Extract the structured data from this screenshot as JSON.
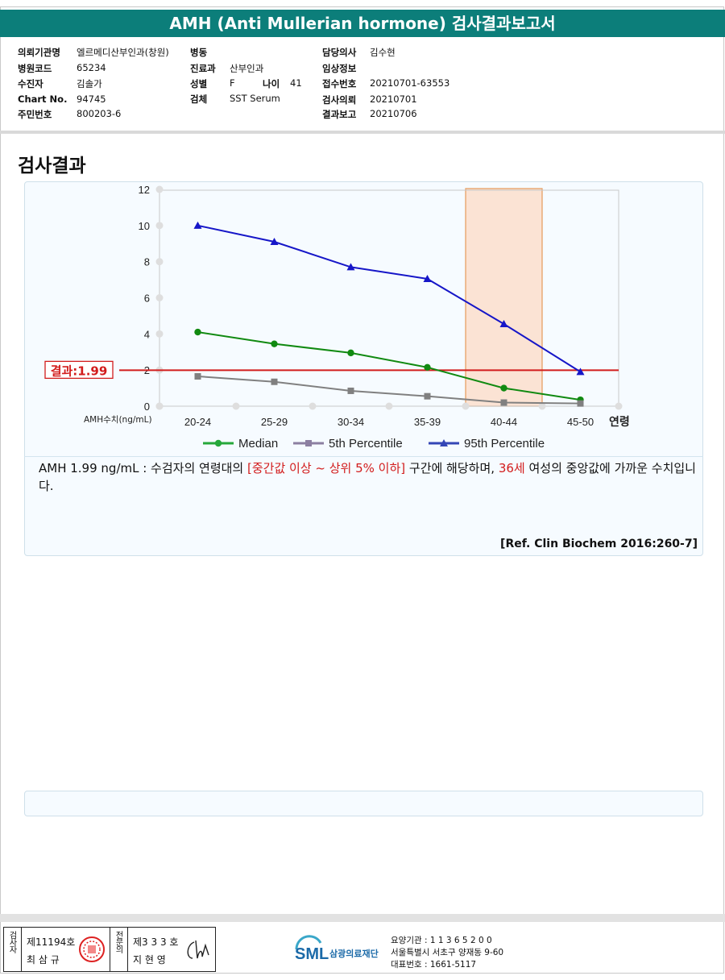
{
  "header": {
    "title": "AMH (Anti Mullerian hormone) 검사결과보고서"
  },
  "info": {
    "col1": [
      {
        "label": "의뢰기관명",
        "value": "엘르메디산부인과(창원)"
      },
      {
        "label": "병원코드",
        "value": "65234"
      },
      {
        "label": "수진자",
        "value": "김솔가"
      },
      {
        "label": "Chart No.",
        "value": "94745"
      },
      {
        "label": "주민번호",
        "value": "800203-6"
      }
    ],
    "col2": [
      {
        "label": "병동",
        "value": ""
      },
      {
        "label": "진료과",
        "value": "산부인과"
      },
      {
        "label": "성별",
        "value": "F"
      },
      {
        "label": "검체",
        "value": "SST Serum"
      }
    ],
    "age": {
      "label": "나이",
      "value": "41"
    },
    "col3": [
      {
        "label": "담당의사",
        "value": "김수현"
      },
      {
        "label": "임상정보",
        "value": ""
      },
      {
        "label": "접수번호",
        "value": "20210701-63553"
      },
      {
        "label": "검사의뢰",
        "value": "20210701"
      },
      {
        "label": "결과보고",
        "value": "20210706"
      }
    ]
  },
  "section_title": "검사결과",
  "chart_data": {
    "type": "line",
    "categories": [
      "20-24",
      "25-29",
      "30-34",
      "35-39",
      "40-44",
      "45-50"
    ],
    "x_suffix_label": "연령",
    "y_unit_label": "AMH수치(ng/mL)",
    "ylim": [
      0,
      12
    ],
    "yticks": [
      0,
      2,
      4,
      6,
      8,
      10,
      12
    ],
    "grid": false,
    "legend_position": "bottom",
    "series": [
      {
        "name": "Median",
        "color": "#118a11",
        "marker": "circle",
        "values": [
          4.1,
          3.45,
          2.95,
          2.15,
          1.0,
          0.35
        ]
      },
      {
        "name": "5th Percentile",
        "color": "#808080",
        "marker": "square",
        "values": [
          1.65,
          1.35,
          0.85,
          0.55,
          0.2,
          0.15
        ]
      },
      {
        "name": "95th Percentile",
        "color": "#1616c8",
        "marker": "triangle",
        "values": [
          10.0,
          9.1,
          7.7,
          7.05,
          4.55,
          1.9
        ]
      }
    ],
    "result_line": {
      "label": "결과:1.99",
      "value": 1.99,
      "color": "#d21c1c"
    },
    "highlight_band": {
      "category": "40-44",
      "color": "#fbe3d4",
      "border": "#e69a5a"
    }
  },
  "result": {
    "prefix": "AMH  1.99 ng/mL : 수검자의 연령대의 ",
    "range": "[중간값 이상 ~ 상위 5% 이하]",
    "mid": "  구간에 해당하며, ",
    "age": "36세",
    "suffix": " 여성의 중앙값에 가까운 수치입니다."
  },
  "reference": "[Ref. Clin Biochem 2016:260-7]",
  "footer": {
    "sign1_title": "검사자",
    "sign1_no": "제11194호",
    "sign1_name": "최 삼 규",
    "sign2_title": "전문의",
    "sign2_no": "제3 3 3 호",
    "sign2_name": "지 현 영",
    "logo_text": "SML",
    "org_name": "삼광의료재단",
    "line1": "요양기관 : 1 1 3 6 5 2 0 0",
    "line2": "서울특별시 서초구 양재동 9-60",
    "line3": "대표번호 : 1661-5117"
  }
}
